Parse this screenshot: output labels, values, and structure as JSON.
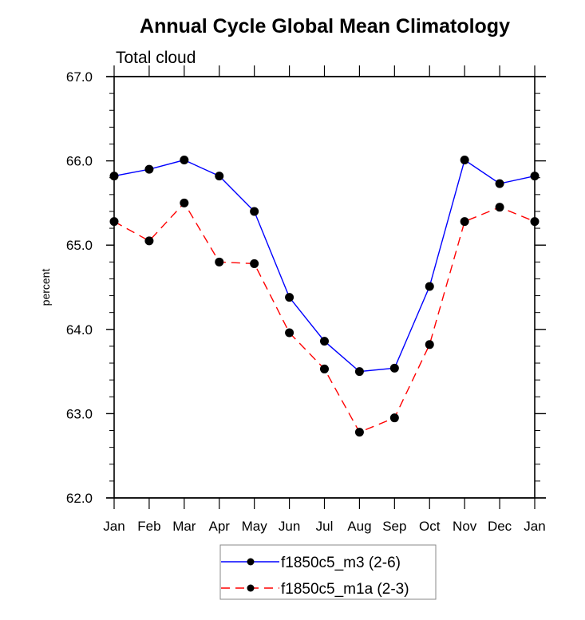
{
  "chart_data": {
    "type": "line",
    "title": "Annual Cycle Global Mean Climatology",
    "subtitle": "Total cloud",
    "xlabel": "",
    "ylabel": "percent",
    "categories": [
      "Jan",
      "Feb",
      "Mar",
      "Apr",
      "May",
      "Jun",
      "Jul",
      "Aug",
      "Sep",
      "Oct",
      "Nov",
      "Dec",
      "Jan"
    ],
    "ylim": [
      62.0,
      67.0
    ],
    "yticks": [
      "62.0",
      "63.0",
      "64.0",
      "65.0",
      "66.0",
      "67.0"
    ],
    "yminor_step": 0.2,
    "grid": false,
    "legend_position": "bottom-center",
    "series": [
      {
        "name": "f1850c5_m3 (2-6)",
        "color": "#0000ff",
        "dash": "solid",
        "marker": "filled-circle",
        "values": [
          65.82,
          65.9,
          66.01,
          65.82,
          65.4,
          64.38,
          63.86,
          63.5,
          63.54,
          64.51,
          66.01,
          65.73,
          65.82
        ]
      },
      {
        "name": "f1850c5_m1a (2-3)",
        "color": "#ff0000",
        "dash": "dashed",
        "marker": "filled-circle",
        "values": [
          65.28,
          65.05,
          65.5,
          64.8,
          64.78,
          63.96,
          63.53,
          62.78,
          62.95,
          63.82,
          65.28,
          65.45,
          65.28
        ]
      }
    ]
  }
}
